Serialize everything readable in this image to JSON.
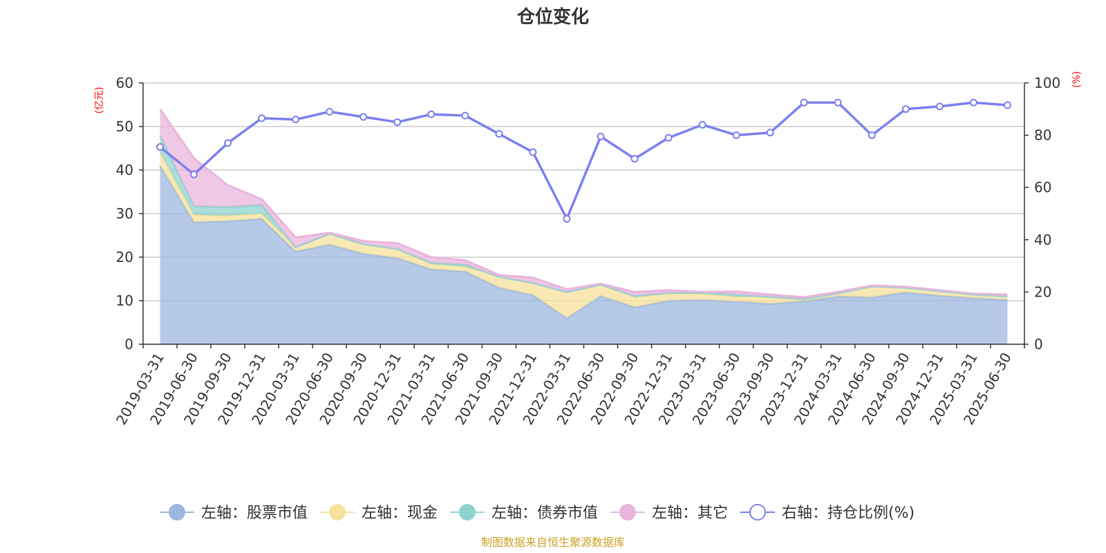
{
  "chart_data": {
    "type": "area",
    "title": "仓位变化",
    "left_axis_unit": "(亿元)",
    "right_axis_unit": "(%)",
    "left_ylim": [
      0,
      60
    ],
    "left_yticks": [
      0,
      10,
      20,
      30,
      40,
      50,
      60
    ],
    "right_ylim": [
      0,
      100
    ],
    "right_yticks": [
      0,
      20,
      40,
      60,
      80,
      100
    ],
    "grid": true,
    "legend_position": "bottom",
    "categories": [
      "2019-03-31",
      "2019-06-30",
      "2019-09-30",
      "2019-12-31",
      "2020-03-31",
      "2020-06-30",
      "2020-09-30",
      "2020-12-31",
      "2021-03-31",
      "2021-06-30",
      "2021-09-30",
      "2021-12-31",
      "2022-03-31",
      "2022-06-30",
      "2022-09-30",
      "2022-12-31",
      "2023-03-31",
      "2023-06-30",
      "2023-09-30",
      "2023-12-31",
      "2024-03-31",
      "2024-06-30",
      "2024-09-30",
      "2024-12-31",
      "2025-03-31",
      "2025-06-30"
    ],
    "stacked_series": [
      {
        "name": "左轴：股票市值",
        "color": "#9db8e0",
        "values": [
          41.0,
          28.0,
          28.3,
          28.8,
          21.3,
          22.9,
          20.8,
          19.8,
          17.2,
          16.7,
          13.0,
          11.3,
          6.0,
          11.1,
          8.5,
          10.0,
          10.2,
          9.8,
          9.3,
          9.9,
          11.0,
          10.8,
          11.9,
          11.2,
          10.6,
          10.2
        ]
      },
      {
        "name": "左轴：现金",
        "color": "#f5e29b",
        "values": [
          3.0,
          1.7,
          1.2,
          1.2,
          1.0,
          2.5,
          2.2,
          2.1,
          1.2,
          1.1,
          2.5,
          2.8,
          6.0,
          2.6,
          2.3,
          1.6,
          1.4,
          1.1,
          1.6,
          0.5,
          0.7,
          2.5,
          1.1,
          1.0,
          0.8,
          0.8
        ]
      },
      {
        "name": "左轴：债券市值",
        "color": "#8fd3d1",
        "values": [
          4.0,
          2.0,
          2.0,
          2.0,
          0.0,
          0.0,
          0.0,
          0.0,
          0.3,
          0.5,
          0.0,
          0.0,
          0.0,
          0.0,
          0.3,
          0.2,
          0.2,
          0.5,
          0.0,
          0.0,
          0.0,
          0.0,
          0.0,
          0.0,
          0.0,
          0.0
        ]
      },
      {
        "name": "左轴：其它",
        "color": "#e8b5dc",
        "values": [
          6.0,
          11.0,
          5.0,
          1.3,
          2.2,
          0.2,
          0.7,
          1.3,
          1.3,
          1.0,
          0.4,
          1.2,
          0.6,
          0.2,
          0.9,
          0.6,
          0.2,
          0.7,
          0.5,
          0.4,
          0.3,
          0.2,
          0.2,
          0.2,
          0.2,
          0.4
        ]
      }
    ],
    "line_series": {
      "name": "右轴：持仓比例(%)",
      "color": "#7b7ff0",
      "values": [
        75.5,
        65.0,
        77.0,
        86.5,
        86.0,
        89.0,
        87.0,
        85.0,
        88.0,
        87.5,
        80.5,
        73.5,
        48.0,
        79.5,
        71.0,
        79.0,
        84.0,
        80.0,
        81.0,
        92.5,
        92.5,
        80.0,
        90.0,
        91.0,
        92.5,
        91.5
      ]
    },
    "source": "制图数据来自恒生聚源数据库"
  }
}
